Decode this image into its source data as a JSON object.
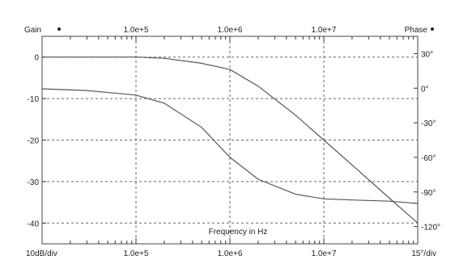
{
  "chart_data": {
    "type": "line",
    "corner_labels": {
      "top_left": "Gain",
      "top_right": "Phase",
      "bottom_left": "10dB/div",
      "bottom_right": "15°/div"
    },
    "xlabel": "Frequency in Hz",
    "x_scale": "log",
    "xlim": [
      10000,
      100000000
    ],
    "x_ticks": [
      {
        "value": 100000,
        "label": "1.0e+5"
      },
      {
        "value": 1000000,
        "label": "1.0e+6"
      },
      {
        "value": 10000000,
        "label": "1.0e+7"
      }
    ],
    "y_left": {
      "ylim": [
        -45,
        5
      ],
      "ticks": [
        0,
        -10,
        -20,
        -30,
        -40
      ],
      "tick_labels": [
        "0",
        "-10",
        "-20",
        "-30",
        "-40"
      ]
    },
    "y_right": {
      "ylim": [
        -135,
        45
      ],
      "ticks": [
        30,
        0,
        -30,
        -60,
        -90,
        -120
      ],
      "tick_labels": [
        "30°",
        "0°",
        "-30°",
        "-60°",
        "-90°",
        "-120°"
      ]
    },
    "grid": true,
    "series": [
      {
        "axis": "left",
        "color": "#555555",
        "x": [
          10000,
          100000,
          200000,
          500000,
          1000000,
          2000000,
          5000000,
          10000000,
          20000000,
          50000000,
          100000000
        ],
        "y": [
          0,
          0,
          -0.3,
          -1.5,
          -3,
          -7,
          -14,
          -20,
          -26,
          -34,
          -40
        ]
      },
      {
        "axis": "right",
        "color": "#555555",
        "x": [
          10000,
          30000,
          100000,
          200000,
          500000,
          1000000,
          2000000,
          5000000,
          10000000,
          20000000,
          50000000,
          100000000
        ],
        "y": [
          -0.5,
          -2,
          -6,
          -13,
          -34,
          -60,
          -79,
          -92,
          -96,
          -97,
          -98,
          -100
        ]
      }
    ]
  }
}
